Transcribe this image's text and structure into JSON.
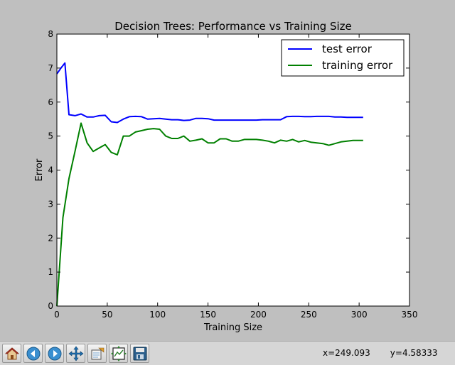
{
  "chart_data": {
    "type": "line",
    "title": "Decision Trees: Performance vs Training Size",
    "xlabel": "Training Size",
    "ylabel": "Error",
    "xlim": [
      0,
      350
    ],
    "ylim": [
      0,
      8
    ],
    "xticks": [
      0,
      50,
      100,
      150,
      200,
      250,
      300,
      350
    ],
    "yticks": [
      0,
      1,
      2,
      3,
      4,
      5,
      6,
      7,
      8
    ],
    "grid": false,
    "legend_position": "top-right",
    "series": [
      {
        "name": "test error",
        "color": "#0000ff",
        "x": [
          0,
          4,
          8,
          12,
          18,
          24,
          30,
          36,
          42,
          48,
          54,
          60,
          66,
          72,
          78,
          84,
          90,
          96,
          102,
          108,
          114,
          120,
          126,
          132,
          138,
          144,
          150,
          156,
          162,
          168,
          174,
          180,
          186,
          192,
          198,
          204,
          210,
          216,
          222,
          228,
          234,
          240,
          246,
          252,
          258,
          264,
          270,
          276,
          282,
          288,
          294,
          300,
          304
        ],
        "y": [
          6.83,
          7.0,
          7.15,
          5.63,
          5.6,
          5.65,
          5.56,
          5.56,
          5.6,
          5.61,
          5.42,
          5.4,
          5.5,
          5.57,
          5.58,
          5.57,
          5.5,
          5.51,
          5.52,
          5.5,
          5.48,
          5.48,
          5.46,
          5.47,
          5.52,
          5.52,
          5.51,
          5.47,
          5.47,
          5.47,
          5.47,
          5.47,
          5.47,
          5.47,
          5.47,
          5.48,
          5.48,
          5.48,
          5.48,
          5.57,
          5.58,
          5.58,
          5.57,
          5.57,
          5.58,
          5.58,
          5.58,
          5.56,
          5.56,
          5.55,
          5.55,
          5.55,
          5.55
        ]
      },
      {
        "name": "training error",
        "color": "#008000",
        "x": [
          0,
          6,
          12,
          18,
          24,
          30,
          36,
          42,
          48,
          54,
          60,
          66,
          72,
          78,
          84,
          90,
          96,
          102,
          108,
          114,
          120,
          126,
          132,
          138,
          144,
          150,
          156,
          162,
          168,
          174,
          180,
          186,
          192,
          198,
          204,
          210,
          216,
          222,
          228,
          234,
          240,
          246,
          252,
          258,
          264,
          270,
          276,
          282,
          288,
          294,
          300,
          304
        ],
        "y": [
          0.0,
          2.6,
          3.75,
          4.55,
          5.38,
          4.8,
          4.55,
          4.65,
          4.75,
          4.52,
          4.45,
          5.0,
          5.0,
          5.12,
          5.16,
          5.2,
          5.22,
          5.2,
          5.0,
          4.93,
          4.93,
          5.0,
          4.85,
          4.88,
          4.92,
          4.8,
          4.8,
          4.92,
          4.92,
          4.85,
          4.85,
          4.9,
          4.9,
          4.9,
          4.88,
          4.85,
          4.8,
          4.88,
          4.85,
          4.9,
          4.83,
          4.87,
          4.82,
          4.8,
          4.78,
          4.73,
          4.78,
          4.83,
          4.85,
          4.87,
          4.87,
          4.87
        ]
      }
    ]
  },
  "toolbar": {
    "buttons": [
      {
        "icon": "home-icon",
        "name": "home-button"
      },
      {
        "icon": "back-arrow-icon",
        "name": "back-button"
      },
      {
        "icon": "forward-arrow-icon",
        "name": "forward-button"
      },
      {
        "icon": "pan-move-icon",
        "name": "pan-button"
      },
      {
        "icon": "zoom-rect-icon",
        "name": "zoom-button"
      },
      {
        "icon": "subplots-config-icon",
        "name": "subplots-button"
      },
      {
        "icon": "save-disk-icon",
        "name": "save-button"
      }
    ]
  },
  "status": {
    "x_readout": "x=249.093",
    "y_readout": "y=4.58333"
  }
}
